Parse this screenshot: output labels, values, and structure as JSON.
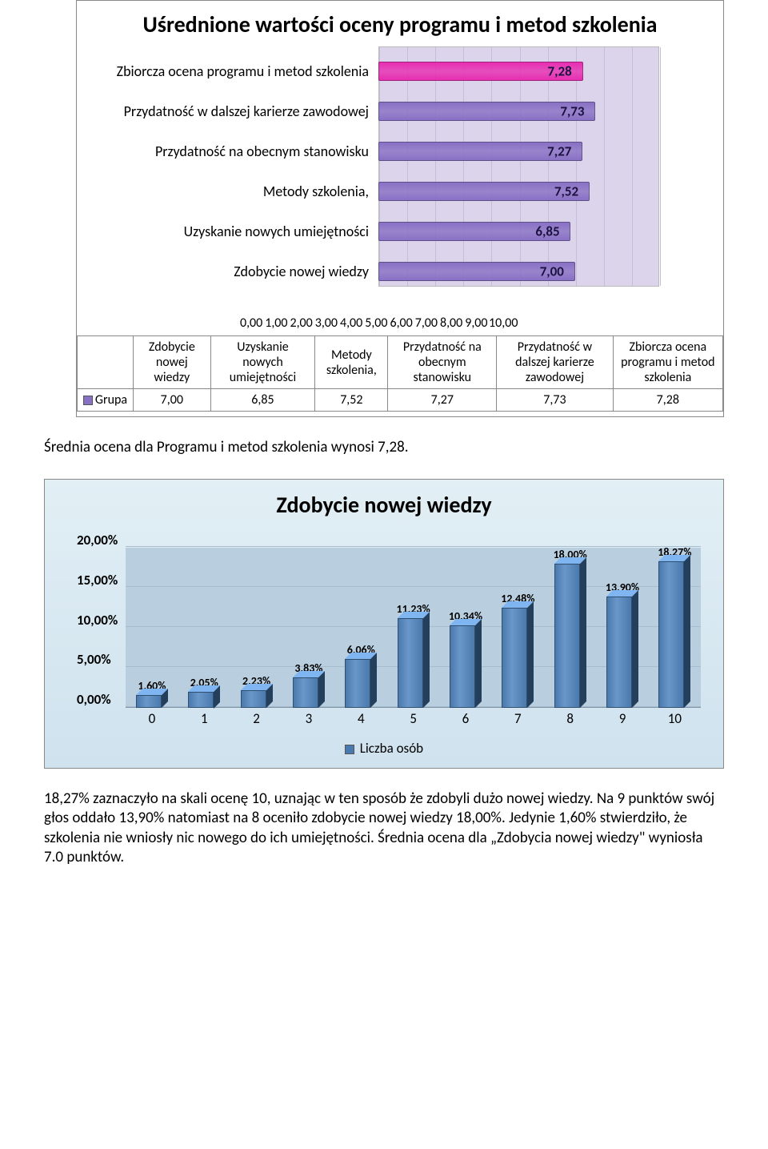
{
  "chart1": {
    "title": "Uśrednione wartości oceny programu i metod szkolenia",
    "title_fontsize": 28,
    "xmin": 0,
    "xmax": 10,
    "xtick_step": 1,
    "xtick_labels": [
      "0,00",
      "1,00",
      "2,00",
      "3,00",
      "4,00",
      "5,00",
      "6,00",
      "7,00",
      "8,00",
      "9,00",
      "10,00"
    ],
    "plot_background": "#dcd4ea",
    "default_bar_color": "#8870c4",
    "highlight_bar_color": "#e72db1",
    "value_text_color": "#1c1240",
    "label_fontsize": 18,
    "value_fontsize": 17,
    "bars": [
      {
        "label": "Zbiorcza ocena programu i metod szkolenia",
        "value": 7.28,
        "value_label": "7,28",
        "color": "#e72db1"
      },
      {
        "label": "Przydatność w dalszej karierze zawodowej",
        "value": 7.73,
        "value_label": "7,73",
        "color": "#8870c4"
      },
      {
        "label": "Przydatność na obecnym stanowisku",
        "value": 7.27,
        "value_label": "7,27",
        "color": "#8870c4"
      },
      {
        "label": "Metody szkolenia,",
        "value": 7.52,
        "value_label": "7,52",
        "color": "#8870c4"
      },
      {
        "label": "Uzyskanie nowych umiejętności",
        "value": 6.85,
        "value_label": "6,85",
        "color": "#8870c4"
      },
      {
        "label": "Zdobycie nowej wiedzy",
        "value": 7.0,
        "value_label": "7,00",
        "color": "#8870c4"
      }
    ],
    "table": {
      "row_header": "Grupa",
      "swatch_color": "#8870c4",
      "columns": [
        "Zdobycie nowej wiedzy",
        "Uzyskanie nowych umiejętności",
        "Metody szkolenia,",
        "Przydatność na obecnym stanowisku",
        "Przydatność w dalszej karierze zawodowej",
        "Zbiorcza ocena programu i metod szkolenia"
      ],
      "values": [
        "7,00",
        "6,85",
        "7,52",
        "7,27",
        "7,73",
        "7,28"
      ]
    }
  },
  "caption1": "Średnia ocena dla Programu i metod szkolenia wynosi 7,28.",
  "chart2": {
    "title": "Zdobycie nowej wiedzy",
    "title_fontsize": 28,
    "ymin": 0,
    "ymax": 20,
    "ytick_step": 5,
    "ytick_labels": [
      "20,00%",
      "15,00%",
      "10,00%",
      "5,00%",
      "0,00%"
    ],
    "background_gradient": [
      "#e2eff5",
      "#cfe2ee"
    ],
    "floor_color": "#b9cfe0",
    "grid_color": "#a6bccf",
    "bar_color": "#4a79ad",
    "bar_top_color": "#6a97c9",
    "bar_side_color": "#345a84",
    "label_fontsize": 14,
    "axis_fontsize": 17,
    "categories": [
      "0",
      "1",
      "2",
      "3",
      "4",
      "5",
      "6",
      "7",
      "8",
      "9",
      "10"
    ],
    "values": [
      1.6,
      2.05,
      2.23,
      3.83,
      6.06,
      11.23,
      10.34,
      12.48,
      18.0,
      13.9,
      18.27
    ],
    "value_labels": [
      "1,60%",
      "2,05%",
      "2,23%",
      "3,83%",
      "6,06%",
      "11,23%",
      "10,34%",
      "12,48%",
      "18,00%",
      "13,90%",
      "18,27%"
    ],
    "legend_label": "Liczba osób",
    "legend_swatch": "#4a79ad"
  },
  "body_text": "18,27% zaznaczyło na skali ocenę 10, uznając w ten sposób że zdobyli dużo nowej wiedzy. Na 9 punktów swój głos oddało 13,90% natomiast na 8 oceniło zdobycie nowej wiedzy 18,00%. Jedynie 1,60% stwierdziło, że szkolenia nie wniosły nic nowego do ich umiejętności. Średnia ocena dla „Zdobycia nowej wiedzy\" wyniosła 7.0 punktów."
}
